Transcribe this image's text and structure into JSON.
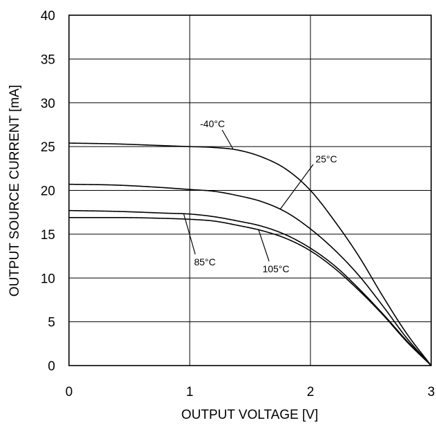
{
  "chart_data": {
    "type": "line",
    "title": "",
    "xlabel": "OUTPUT VOLTAGE [V]",
    "ylabel": "OUTPUT SOURCE CURRENT [mA]",
    "xlim": [
      0,
      3
    ],
    "ylim": [
      0,
      40
    ],
    "xticks": [
      0,
      1,
      2,
      3
    ],
    "yticks": [
      0,
      5,
      10,
      15,
      20,
      25,
      30,
      35,
      40
    ],
    "xtick_labels": [
      "0",
      "1",
      "2",
      "3"
    ],
    "ytick_labels": [
      "0",
      "5",
      "10",
      "15",
      "20",
      "25",
      "30",
      "35",
      "40"
    ],
    "grid": true,
    "series": [
      {
        "name": "-40°C",
        "x": [
          0,
          0.4,
          0.8,
          1.0,
          1.2,
          1.4,
          1.6,
          1.8,
          2.0,
          2.2,
          2.4,
          2.6,
          2.8,
          3.0
        ],
        "values": [
          25.4,
          25.3,
          25.1,
          25.0,
          24.9,
          24.6,
          23.8,
          22.4,
          20.0,
          16.5,
          12.5,
          7.9,
          3.6,
          0
        ]
      },
      {
        "name": "25°C",
        "x": [
          0,
          0.4,
          0.8,
          1.0,
          1.2,
          1.4,
          1.6,
          1.8,
          2.0,
          2.2,
          2.4,
          2.6,
          2.8,
          3.0
        ],
        "values": [
          20.7,
          20.6,
          20.3,
          20.1,
          19.9,
          19.4,
          18.7,
          17.5,
          15.6,
          13.2,
          10.3,
          6.8,
          3.1,
          0
        ]
      },
      {
        "name": "85°C",
        "x": [
          0,
          0.4,
          0.8,
          1.0,
          1.2,
          1.4,
          1.6,
          1.8,
          2.0,
          2.2,
          2.4,
          2.6,
          2.8,
          3.0
        ],
        "values": [
          17.7,
          17.6,
          17.4,
          17.3,
          17.0,
          16.5,
          15.9,
          14.9,
          13.4,
          11.4,
          8.8,
          5.9,
          2.8,
          0
        ]
      },
      {
        "name": "105°C",
        "x": [
          0,
          0.4,
          0.8,
          1.0,
          1.2,
          1.4,
          1.6,
          1.8,
          2.0,
          2.2,
          2.4,
          2.6,
          2.8,
          3.0
        ],
        "values": [
          16.9,
          16.9,
          16.8,
          16.7,
          16.5,
          16.0,
          15.4,
          14.5,
          13.1,
          11.1,
          8.6,
          5.8,
          2.7,
          0
        ]
      }
    ],
    "annotations": [
      {
        "text": "-40°C",
        "series": "-40°C"
      },
      {
        "text": "25°C",
        "series": "25°C"
      },
      {
        "text": "85°C",
        "series": "85°C"
      },
      {
        "text": "105°C",
        "series": "105°C"
      }
    ]
  }
}
